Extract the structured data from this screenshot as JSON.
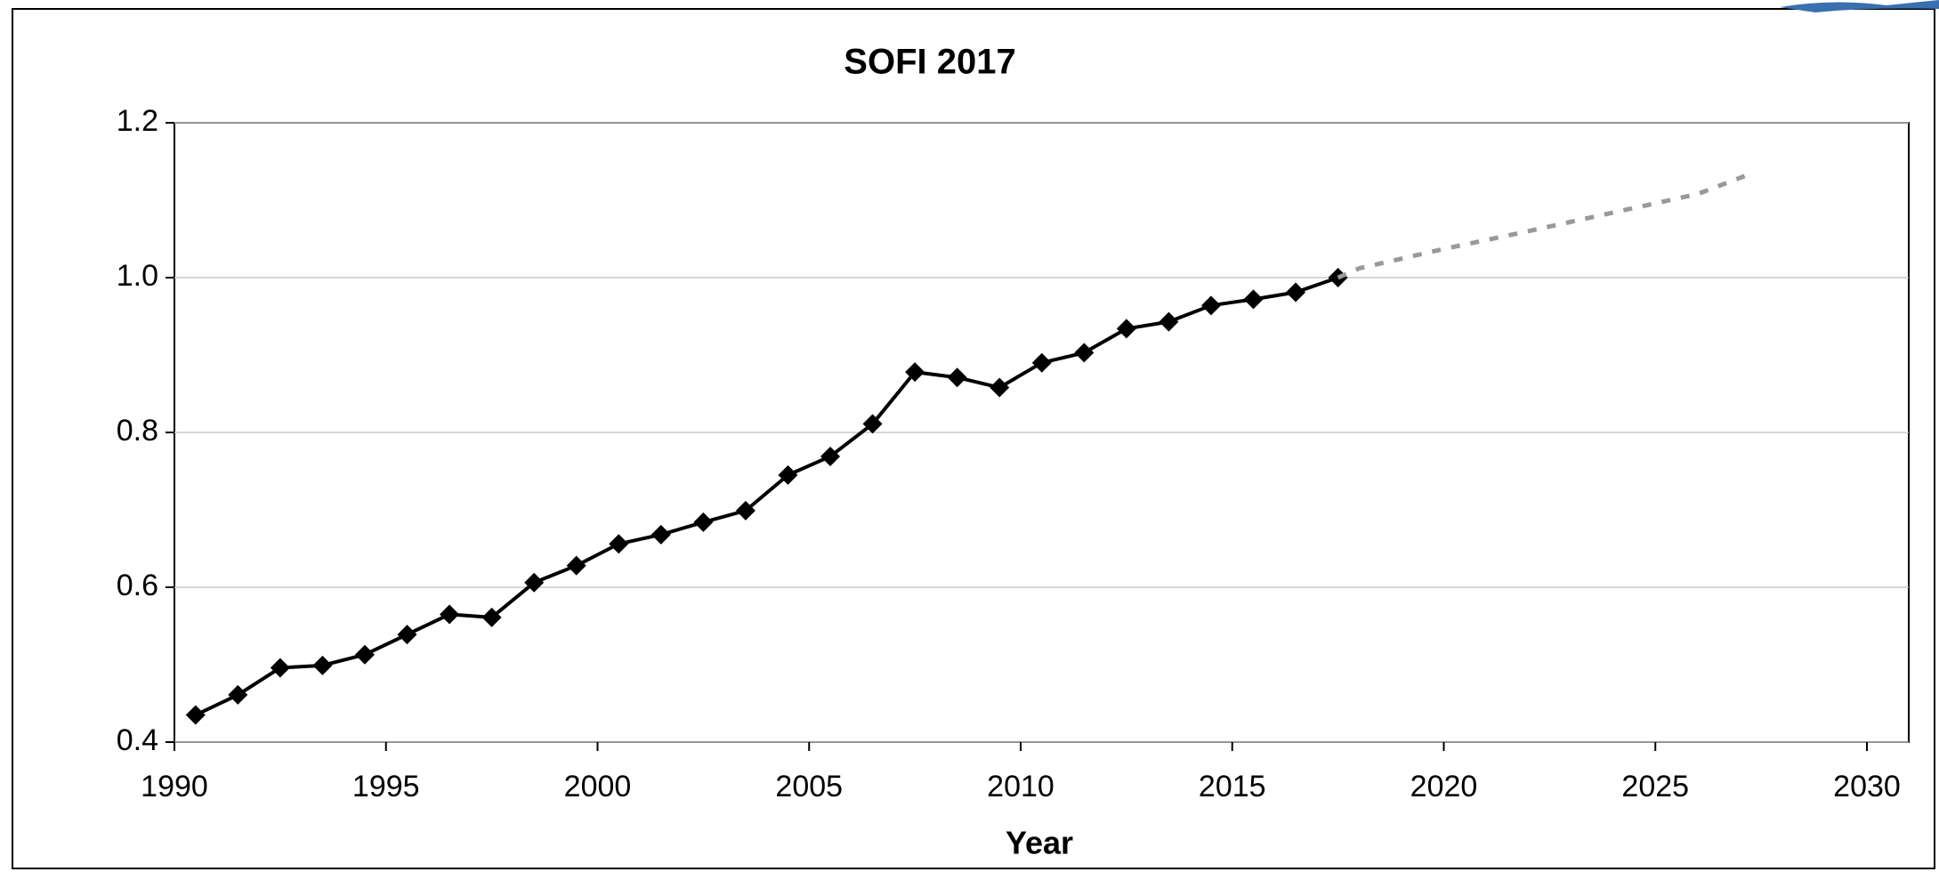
{
  "chart_data": {
    "type": "line",
    "title": "SOFI 2017",
    "xlabel": "Year",
    "xlim": [
      1990,
      2030
    ],
    "xticks": [
      1990,
      1995,
      2000,
      2005,
      2010,
      2015,
      2020,
      2025,
      2030
    ],
    "ylim": [
      0.4,
      1.2
    ],
    "yticks": [
      0.4,
      0.6,
      0.8,
      {
        "value": 1,
        "label": "1.0"
      },
      1.2
    ],
    "grid": true,
    "series": [
      {
        "color": "#000000",
        "line_style": "solid",
        "marker": "diamond",
        "x": [
          1990.5,
          1991.5,
          1992.5,
          1993.5,
          1994.5,
          1995.5,
          1996.5,
          1997.5,
          1998.5,
          1999.5,
          2000.5,
          2001.5,
          2002.5,
          2003.5,
          2004.5,
          2005.5,
          2006.5,
          2007.5,
          2008.5,
          2009.5,
          2010.5,
          2011.5,
          2012.5,
          2013.5,
          2014.5,
          2015.5,
          2016.5,
          2017.5
        ],
        "values": [
          0.435,
          0.461,
          0.496,
          0.499,
          0.513,
          0.539,
          0.565,
          0.561,
          0.606,
          0.628,
          0.656,
          0.668,
          0.684,
          0.699,
          0.745,
          0.769,
          0.811,
          0.878,
          0.871,
          0.858,
          0.89,
          0.903,
          0.934,
          0.943,
          0.964,
          0.972,
          0.981,
          1.0
        ]
      },
      {
        "color": "#999999",
        "line_style": "dashed",
        "marker": "none",
        "x": [
          2017.5,
          2018,
          2020,
          2022,
          2024,
          2026,
          2027.2
        ],
        "values": [
          1.0,
          1.012,
          1.037,
          1.06,
          1.084,
          1.108,
          1.133
        ]
      }
    ]
  }
}
